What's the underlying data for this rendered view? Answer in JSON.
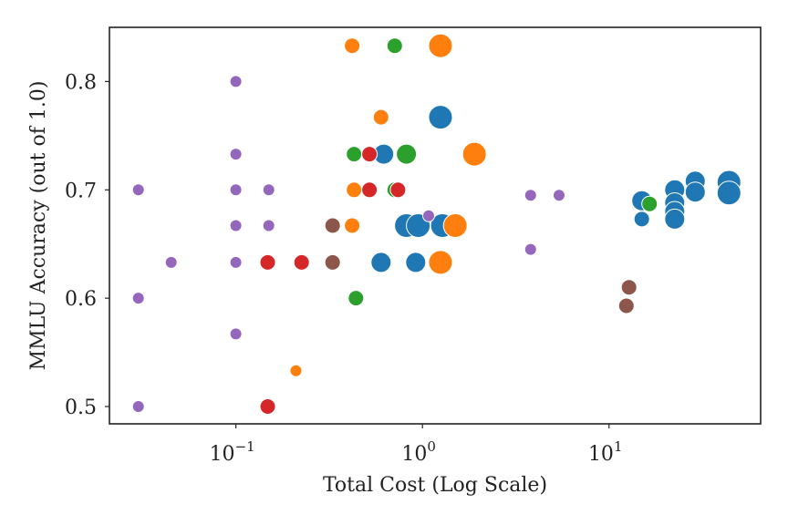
{
  "chart_data": {
    "type": "scatter",
    "title": "",
    "xlabel": "Total Cost (Log Scale)",
    "ylabel": "MMLU Accuracy (out of 1.0)",
    "xscale": "log",
    "xlim": [
      0.021,
      65
    ],
    "ylim": [
      0.484,
      0.85
    ],
    "grid": false,
    "legend": "none",
    "x_ticks": [
      {
        "value": 0.1,
        "base": "10",
        "exp": "−1"
      },
      {
        "value": 1,
        "base": "10",
        "exp": "0"
      },
      {
        "value": 10,
        "base": "10",
        "exp": "1"
      }
    ],
    "y_ticks": [
      {
        "value": 0.5,
        "label": "0.5"
      },
      {
        "value": 0.6,
        "label": "0.6"
      },
      {
        "value": 0.7,
        "label": "0.7"
      },
      {
        "value": 0.8,
        "label": "0.8"
      }
    ],
    "series": [
      {
        "name": "blue",
        "color": "#1f77b4",
        "points": [
          {
            "x": 0.62,
            "y": 0.733,
            "s": 2
          },
          {
            "x": 1.25,
            "y": 0.767,
            "s": 3
          },
          {
            "x": 0.82,
            "y": 0.667,
            "s": 3
          },
          {
            "x": 0.95,
            "y": 0.667,
            "s": 3
          },
          {
            "x": 1.28,
            "y": 0.667,
            "s": 3
          },
          {
            "x": 0.6,
            "y": 0.633,
            "s": 2
          },
          {
            "x": 0.92,
            "y": 0.633,
            "s": 2
          },
          {
            "x": 15,
            "y": 0.69,
            "s": 2
          },
          {
            "x": 15,
            "y": 0.673,
            "s": 1
          },
          {
            "x": 22.5,
            "y": 0.7,
            "s": 2
          },
          {
            "x": 22.5,
            "y": 0.688,
            "s": 2
          },
          {
            "x": 22.5,
            "y": 0.68,
            "s": 2
          },
          {
            "x": 22.5,
            "y": 0.673,
            "s": 2
          },
          {
            "x": 29,
            "y": 0.708,
            "s": 2
          },
          {
            "x": 29,
            "y": 0.698,
            "s": 2
          },
          {
            "x": 44,
            "y": 0.707,
            "s": 3
          },
          {
            "x": 44,
            "y": 0.697,
            "s": 3
          }
        ]
      },
      {
        "name": "orange",
        "color": "#ff7f0e",
        "points": [
          {
            "x": 0.42,
            "y": 0.833,
            "s": 1
          },
          {
            "x": 1.25,
            "y": 0.833,
            "s": 3
          },
          {
            "x": 0.6,
            "y": 0.767,
            "s": 1
          },
          {
            "x": 1.9,
            "y": 0.733,
            "s": 3
          },
          {
            "x": 0.43,
            "y": 0.7,
            "s": 1
          },
          {
            "x": 0.42,
            "y": 0.667,
            "s": 1
          },
          {
            "x": 1.5,
            "y": 0.667,
            "s": 3
          },
          {
            "x": 1.25,
            "y": 0.633,
            "s": 3
          },
          {
            "x": 0.21,
            "y": 0.533,
            "s": 0
          }
        ]
      },
      {
        "name": "green",
        "color": "#2ca02c",
        "points": [
          {
            "x": 0.71,
            "y": 0.833,
            "s": 1
          },
          {
            "x": 0.43,
            "y": 0.733,
            "s": 1
          },
          {
            "x": 0.82,
            "y": 0.733,
            "s": 2
          },
          {
            "x": 0.71,
            "y": 0.7,
            "s": 1
          },
          {
            "x": 0.44,
            "y": 0.6,
            "s": 1
          },
          {
            "x": 16.5,
            "y": 0.687,
            "s": 1
          }
        ]
      },
      {
        "name": "red",
        "color": "#d62728",
        "points": [
          {
            "x": 0.52,
            "y": 0.733,
            "s": 1
          },
          {
            "x": 0.52,
            "y": 0.7,
            "s": 1
          },
          {
            "x": 0.74,
            "y": 0.7,
            "s": 1
          },
          {
            "x": 0.148,
            "y": 0.633,
            "s": 1
          },
          {
            "x": 0.225,
            "y": 0.633,
            "s": 1
          },
          {
            "x": 0.148,
            "y": 0.5,
            "s": 1
          }
        ]
      },
      {
        "name": "purple",
        "color": "#9467bd",
        "points": [
          {
            "x": 0.1,
            "y": 0.8,
            "s": 0
          },
          {
            "x": 0.1,
            "y": 0.733,
            "s": 0
          },
          {
            "x": 0.03,
            "y": 0.7,
            "s": 0
          },
          {
            "x": 0.1,
            "y": 0.7,
            "s": 0
          },
          {
            "x": 0.15,
            "y": 0.7,
            "s": 0
          },
          {
            "x": 0.1,
            "y": 0.667,
            "s": 0
          },
          {
            "x": 0.15,
            "y": 0.667,
            "s": 0
          },
          {
            "x": 0.045,
            "y": 0.633,
            "s": 0
          },
          {
            "x": 0.1,
            "y": 0.633,
            "s": 0
          },
          {
            "x": 0.03,
            "y": 0.6,
            "s": 0
          },
          {
            "x": 0.1,
            "y": 0.567,
            "s": 0
          },
          {
            "x": 0.03,
            "y": 0.5,
            "s": 0
          },
          {
            "x": 1.08,
            "y": 0.676,
            "s": 0
          },
          {
            "x": 3.8,
            "y": 0.695,
            "s": 0
          },
          {
            "x": 5.4,
            "y": 0.695,
            "s": 0
          },
          {
            "x": 3.8,
            "y": 0.645,
            "s": 0
          }
        ]
      },
      {
        "name": "brown",
        "color": "#8c564b",
        "points": [
          {
            "x": 0.33,
            "y": 0.667,
            "s": 1
          },
          {
            "x": 0.33,
            "y": 0.633,
            "s": 1
          },
          {
            "x": 12.8,
            "y": 0.61,
            "s": 1
          },
          {
            "x": 12.4,
            "y": 0.593,
            "s": 1
          }
        ]
      }
    ]
  }
}
